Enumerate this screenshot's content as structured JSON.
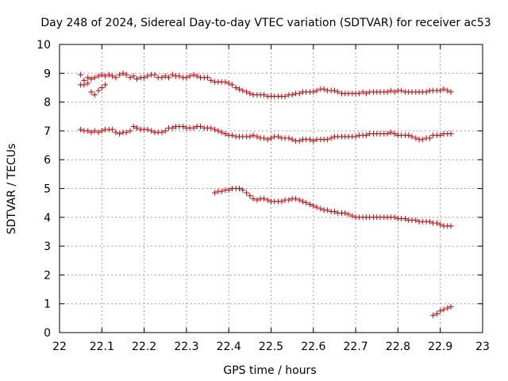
{
  "chart_data": {
    "type": "scatter",
    "title": "Day 248 of 2024, Sidereal Day-to-day VTEC variation (SDTVAR) for receiver ac53",
    "xlabel": "GPS time / hours",
    "ylabel": "SDTVAR / TECUs",
    "xlim": [
      22,
      23
    ],
    "ylim": [
      0,
      10
    ],
    "x_ticks": [
      "22",
      "22.1",
      "22.2",
      "22.3",
      "22.4",
      "22.5",
      "22.6",
      "22.7",
      "22.8",
      "22.9",
      "23"
    ],
    "y_ticks": [
      "0",
      "1",
      "2",
      "3",
      "4",
      "5",
      "6",
      "7",
      "8",
      "9",
      "10"
    ],
    "grid": true,
    "marker": "+",
    "series": [
      {
        "name": "series-1",
        "color": "#cc0000",
        "x": [
          22.05,
          22.058,
          22.067,
          22.075,
          22.083,
          22.092,
          22.1,
          22.108,
          22.117,
          22.125,
          22.133,
          22.142,
          22.15,
          22.158,
          22.167,
          22.175,
          22.183,
          22.192,
          22.2,
          22.208,
          22.217,
          22.225,
          22.233,
          22.242,
          22.25,
          22.258,
          22.267,
          22.275,
          22.283,
          22.292,
          22.3,
          22.308,
          22.317,
          22.325,
          22.333,
          22.342,
          22.35,
          22.358,
          22.367,
          22.375,
          22.383,
          22.392,
          22.4,
          22.408,
          22.417,
          22.425,
          22.433,
          22.442,
          22.45,
          22.458,
          22.467,
          22.475,
          22.483,
          22.492,
          22.5,
          22.508,
          22.517,
          22.525,
          22.533,
          22.542,
          22.55,
          22.558,
          22.567,
          22.575,
          22.583,
          22.592,
          22.6,
          22.608,
          22.617,
          22.625,
          22.633,
          22.642,
          22.65,
          22.658,
          22.667,
          22.675,
          22.683,
          22.692,
          22.7,
          22.708,
          22.717,
          22.725,
          22.733,
          22.742,
          22.75,
          22.758,
          22.767,
          22.775,
          22.783,
          22.792,
          22.8,
          22.808,
          22.817,
          22.825,
          22.833,
          22.842,
          22.85,
          22.858,
          22.867,
          22.875,
          22.883,
          22.892,
          22.9,
          22.908,
          22.917,
          22.925
        ],
        "y": [
          8.95,
          8.75,
          8.85,
          8.8,
          8.85,
          8.9,
          8.95,
          8.9,
          8.95,
          8.9,
          8.85,
          8.95,
          9.0,
          8.95,
          8.85,
          8.9,
          8.8,
          8.85,
          8.85,
          8.9,
          8.95,
          8.95,
          8.85,
          8.85,
          8.9,
          8.85,
          8.95,
          8.9,
          8.9,
          8.85,
          8.85,
          8.9,
          8.95,
          8.9,
          8.85,
          8.85,
          8.85,
          8.75,
          8.7,
          8.7,
          8.7,
          8.7,
          8.65,
          8.6,
          8.5,
          8.45,
          8.4,
          8.35,
          8.3,
          8.25,
          8.25,
          8.25,
          8.25,
          8.2,
          8.2,
          8.2,
          8.2,
          8.2,
          8.2,
          8.25,
          8.25,
          8.3,
          8.3,
          8.35,
          8.35,
          8.35,
          8.35,
          8.4,
          8.45,
          8.45,
          8.4,
          8.4,
          8.4,
          8.35,
          8.3,
          8.3,
          8.3,
          8.3,
          8.3,
          8.3,
          8.35,
          8.3,
          8.35,
          8.35,
          8.35,
          8.35,
          8.35,
          8.35,
          8.4,
          8.35,
          8.4,
          8.4,
          8.35,
          8.35,
          8.35,
          8.35,
          8.35,
          8.35,
          8.35,
          8.4,
          8.4,
          8.4,
          8.4,
          8.45,
          8.4,
          8.35
        ]
      },
      {
        "name": "series-2",
        "color": "#cc0000",
        "x": [
          22.05,
          22.058,
          22.067,
          22.075,
          22.083,
          22.092,
          22.1,
          22.108
        ],
        "y": [
          8.6,
          8.6,
          8.65,
          8.35,
          8.25,
          8.4,
          8.5,
          8.6
        ]
      },
      {
        "name": "series-3",
        "color": "#cc0000",
        "x": [
          22.05,
          22.058,
          22.067,
          22.075,
          22.083,
          22.092,
          22.1,
          22.108,
          22.117,
          22.125,
          22.133,
          22.142,
          22.15,
          22.158,
          22.167,
          22.175,
          22.183,
          22.192,
          22.2,
          22.208,
          22.217,
          22.225,
          22.233,
          22.242,
          22.25,
          22.258,
          22.267,
          22.275,
          22.283,
          22.292,
          22.3,
          22.308,
          22.317,
          22.325,
          22.333,
          22.342,
          22.35,
          22.358,
          22.367,
          22.375,
          22.383,
          22.392,
          22.4,
          22.408,
          22.417,
          22.425,
          22.433,
          22.442,
          22.45,
          22.458,
          22.467,
          22.475,
          22.483,
          22.492,
          22.5,
          22.508,
          22.517,
          22.525,
          22.533,
          22.542,
          22.55,
          22.558,
          22.567,
          22.575,
          22.583,
          22.592,
          22.6,
          22.608,
          22.617,
          22.625,
          22.633,
          22.642,
          22.65,
          22.658,
          22.667,
          22.675,
          22.683,
          22.692,
          22.7,
          22.708,
          22.717,
          22.725,
          22.733,
          22.742,
          22.75,
          22.758,
          22.767,
          22.775,
          22.783,
          22.792,
          22.8,
          22.808,
          22.817,
          22.825,
          22.833,
          22.842,
          22.85,
          22.858,
          22.867,
          22.875,
          22.883,
          22.892,
          22.9,
          22.908,
          22.917,
          22.925
        ],
        "y": [
          7.05,
          7.0,
          7.0,
          6.95,
          7.0,
          6.95,
          7.0,
          7.05,
          7.05,
          7.05,
          6.95,
          6.9,
          6.95,
          6.95,
          7.0,
          7.15,
          7.1,
          7.05,
          7.05,
          7.05,
          7.0,
          6.95,
          6.95,
          6.95,
          7.0,
          7.1,
          7.1,
          7.15,
          7.15,
          7.15,
          7.1,
          7.1,
          7.1,
          7.15,
          7.15,
          7.1,
          7.1,
          7.1,
          7.05,
          7.0,
          6.95,
          6.9,
          6.85,
          6.85,
          6.8,
          6.8,
          6.8,
          6.8,
          6.8,
          6.85,
          6.8,
          6.75,
          6.75,
          6.7,
          6.75,
          6.8,
          6.8,
          6.75,
          6.75,
          6.75,
          6.7,
          6.65,
          6.65,
          6.7,
          6.7,
          6.7,
          6.65,
          6.7,
          6.7,
          6.7,
          6.7,
          6.75,
          6.8,
          6.8,
          6.8,
          6.8,
          6.8,
          6.8,
          6.8,
          6.85,
          6.85,
          6.85,
          6.9,
          6.9,
          6.9,
          6.9,
          6.9,
          6.9,
          6.95,
          6.9,
          6.85,
          6.85,
          6.85,
          6.85,
          6.8,
          6.75,
          6.7,
          6.7,
          6.75,
          6.75,
          6.85,
          6.85,
          6.85,
          6.9,
          6.9,
          6.9
        ]
      },
      {
        "name": "series-4",
        "color": "#cc0000",
        "x": [
          22.367,
          22.375,
          22.383,
          22.392,
          22.4,
          22.408,
          22.417,
          22.425,
          22.433,
          22.442,
          22.45,
          22.458,
          22.467,
          22.475,
          22.483,
          22.492,
          22.5,
          22.508,
          22.517,
          22.525,
          22.533,
          22.542,
          22.55,
          22.558,
          22.567,
          22.575,
          22.583,
          22.592,
          22.6,
          22.608,
          22.617,
          22.625,
          22.633,
          22.642,
          22.65,
          22.658,
          22.667,
          22.675,
          22.683,
          22.692,
          22.7,
          22.708,
          22.717,
          22.725,
          22.733,
          22.742,
          22.75,
          22.758,
          22.767,
          22.775,
          22.783,
          22.792,
          22.8,
          22.808,
          22.817,
          22.825,
          22.833,
          22.842,
          22.85,
          22.858,
          22.867,
          22.875,
          22.883,
          22.892,
          22.9,
          22.908,
          22.917,
          22.925
        ],
        "y": [
          4.85,
          4.9,
          4.9,
          4.95,
          4.95,
          5.0,
          5.0,
          5.0,
          4.95,
          4.85,
          4.75,
          4.65,
          4.6,
          4.65,
          4.65,
          4.6,
          4.55,
          4.55,
          4.55,
          4.55,
          4.6,
          4.6,
          4.65,
          4.65,
          4.6,
          4.55,
          4.5,
          4.45,
          4.4,
          4.35,
          4.3,
          4.25,
          4.25,
          4.2,
          4.2,
          4.15,
          4.15,
          4.15,
          4.1,
          4.05,
          4.0,
          4.0,
          4.0,
          4.0,
          4.0,
          4.0,
          4.0,
          4.0,
          4.0,
          4.0,
          4.0,
          4.0,
          3.95,
          3.95,
          3.95,
          3.9,
          3.9,
          3.9,
          3.85,
          3.85,
          3.85,
          3.85,
          3.8,
          3.8,
          3.75,
          3.7,
          3.7,
          3.7
        ]
      },
      {
        "name": "series-5",
        "color": "#cc0000",
        "x": [
          22.883,
          22.892,
          22.9,
          22.908,
          22.917,
          22.925
        ],
        "y": [
          0.6,
          0.65,
          0.75,
          0.8,
          0.85,
          0.9
        ]
      }
    ]
  }
}
